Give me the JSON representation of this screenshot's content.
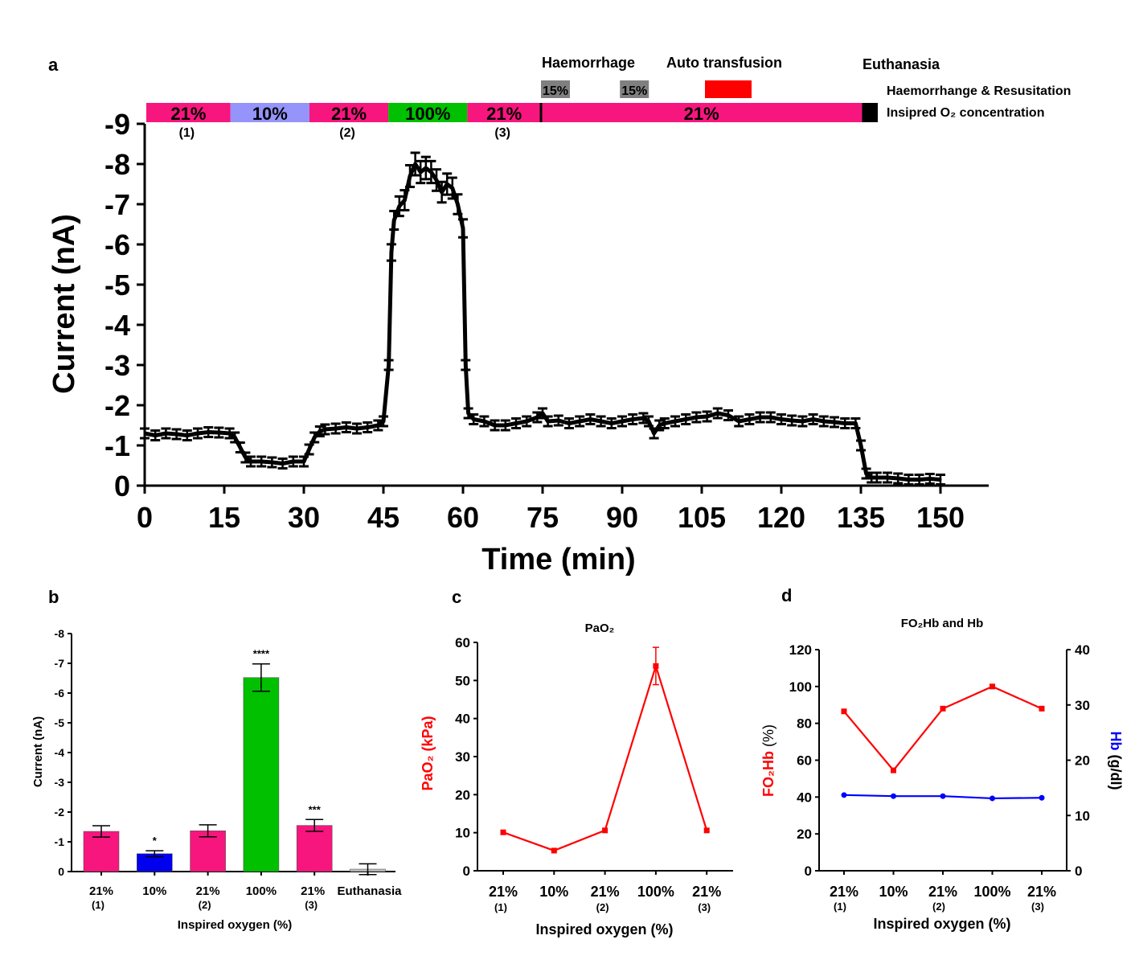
{
  "figure": {
    "panel_labels": {
      "a": "a",
      "b": "b",
      "c": "c",
      "d": "d"
    }
  },
  "chart_data": [
    {
      "id": "a",
      "type": "line",
      "title": "",
      "xlabel": "Time (min)",
      "ylabel": "Current (nA)",
      "xlim": [
        0,
        160
      ],
      "ylim": [
        0,
        -9
      ],
      "xticks": [
        "0",
        "15",
        "30",
        "45",
        "60",
        "75",
        "90",
        "105",
        "120",
        "135",
        "150"
      ],
      "yticks": [
        "0",
        "-1",
        "-2",
        "-3",
        "-4",
        "-5",
        "-6",
        "-7",
        "-8",
        "-9"
      ],
      "grid": false,
      "x": [
        0,
        2,
        4,
        6,
        8,
        10,
        12,
        14,
        16,
        17,
        18,
        19,
        20,
        22,
        24,
        26,
        28,
        30,
        31,
        32,
        33,
        34,
        36,
        38,
        40,
        42,
        44,
        45,
        46,
        46.5,
        47,
        48,
        49,
        50,
        51,
        52,
        53,
        54,
        55,
        56,
        57,
        58,
        59,
        60,
        60.5,
        61,
        62,
        64,
        66,
        68,
        70,
        72,
        74,
        75,
        76,
        78,
        80,
        82,
        84,
        86,
        88,
        90,
        92,
        94,
        95,
        96,
        97,
        98,
        100,
        102,
        104,
        106,
        108,
        110,
        112,
        114,
        116,
        118,
        120,
        122,
        124,
        126,
        128,
        130,
        132,
        134,
        135,
        136,
        137,
        138,
        140,
        142,
        144,
        146,
        148,
        150
      ],
      "y": [
        -1.3,
        -1.25,
        -1.3,
        -1.28,
        -1.25,
        -1.3,
        -1.33,
        -1.32,
        -1.3,
        -1.2,
        -0.95,
        -0.7,
        -0.6,
        -0.6,
        -0.58,
        -0.55,
        -0.6,
        -0.6,
        -0.9,
        -1.2,
        -1.35,
        -1.4,
        -1.42,
        -1.45,
        -1.42,
        -1.45,
        -1.5,
        -1.6,
        -3.0,
        -5.8,
        -6.6,
        -6.95,
        -7.1,
        -7.7,
        -8.0,
        -7.8,
        -7.9,
        -7.8,
        -7.6,
        -7.3,
        -7.5,
        -7.4,
        -7.0,
        -6.4,
        -3.0,
        -1.8,
        -1.65,
        -1.6,
        -1.5,
        -1.5,
        -1.55,
        -1.6,
        -1.7,
        -1.8,
        -1.6,
        -1.62,
        -1.55,
        -1.6,
        -1.65,
        -1.6,
        -1.55,
        -1.6,
        -1.65,
        -1.68,
        -1.6,
        -1.3,
        -1.5,
        -1.55,
        -1.6,
        -1.65,
        -1.7,
        -1.72,
        -1.8,
        -1.75,
        -1.6,
        -1.65,
        -1.7,
        -1.7,
        -1.65,
        -1.62,
        -1.6,
        -1.65,
        -1.6,
        -1.58,
        -1.55,
        -1.55,
        -1.0,
        -0.3,
        -0.2,
        -0.2,
        -0.2,
        -0.18,
        -0.15,
        -0.15,
        -0.17,
        -0.15
      ],
      "error": 0.12,
      "annotations": {
        "events": [
          {
            "label": "Haemorrhage",
            "x": 75
          },
          {
            "label": "Auto transfusion",
            "x": 105
          },
          {
            "label": "Euthanasia",
            "x": 136
          }
        ],
        "rows": {
          "haemorrhage_row_label": "Haemorrhange & Resusitation",
          "o2_row_label": "Insipred O₂ concentration"
        },
        "haemorrhage_blocks": [
          {
            "label": "15%",
            "start": 75,
            "end": 81,
            "color": "#808080"
          },
          {
            "label": "15%",
            "start": 90,
            "end": 96,
            "color": "#808080"
          },
          {
            "label": "",
            "start": 106,
            "end": 115,
            "color": "#ff0000"
          }
        ],
        "o2_blocks": [
          {
            "label": "21%",
            "sub": "(1)",
            "start": 0,
            "end": 16,
            "color": "#f7157e"
          },
          {
            "label": "10%",
            "sub": "",
            "start": 16,
            "end": 31,
            "color": "#9494fa"
          },
          {
            "label": "21%",
            "sub": "(2)",
            "start": 31,
            "end": 46,
            "color": "#f7157e"
          },
          {
            "label": "100%",
            "sub": "",
            "start": 46,
            "end": 61,
            "color": "#00c000"
          },
          {
            "label": "21%",
            "sub": "(3)",
            "start": 61,
            "end": 75,
            "color": "#f7157e"
          },
          {
            "label": "21%",
            "sub": "",
            "start": 75,
            "end": 136,
            "color": "#f7157e"
          },
          {
            "label": "",
            "sub": "",
            "start": 136,
            "end": 139,
            "color": "#000000"
          }
        ]
      }
    },
    {
      "id": "b",
      "type": "bar",
      "title": "",
      "xlabel": "Inspired oxygen (%)",
      "ylabel": "Current (nA)",
      "ylim": [
        0,
        -8
      ],
      "yticks": [
        "0",
        "-1",
        "-2",
        "-3",
        "-4",
        "-5",
        "-6",
        "-7",
        "-8"
      ],
      "categories": [
        "21%",
        "10%",
        "21%",
        "100%",
        "21%",
        "Euthanasia"
      ],
      "subcategories": [
        "(1)",
        "",
        "(2)",
        "",
        "(3)",
        ""
      ],
      "values": [
        -1.35,
        -0.6,
        -1.37,
        -6.52,
        -1.55,
        -0.08
      ],
      "errors": [
        0.19,
        0.1,
        0.2,
        0.46,
        0.2,
        0.18
      ],
      "significance": [
        "",
        "*",
        "",
        "****",
        "***",
        ""
      ],
      "colors": [
        "#f7157e",
        "#0000ee",
        "#f7157e",
        "#00c000",
        "#f7157e",
        "#c0c0c0"
      ]
    },
    {
      "id": "c",
      "type": "line",
      "title": "PaO₂",
      "xlabel": "Inspired oxygen (%)",
      "ylabel": "PaO₂ (kPa)",
      "ylim": [
        0,
        60
      ],
      "yticks": [
        "0",
        "10",
        "20",
        "30",
        "40",
        "50",
        "60"
      ],
      "categories": [
        "21%",
        "10%",
        "21%",
        "100%",
        "21%"
      ],
      "subcategories": [
        "(1)",
        "",
        "(2)",
        "",
        "(3)"
      ],
      "series": [
        {
          "name": "PaO2",
          "values": [
            10.1,
            5.3,
            10.6,
            53.8,
            10.6
          ],
          "errors": [
            0,
            0,
            0,
            4.9,
            0
          ],
          "color": "#ff0000"
        }
      ]
    },
    {
      "id": "d",
      "type": "line",
      "title": "FO₂Hb and Hb",
      "xlabel": "Inspired oxygen (%)",
      "ylabel": "FO₂Hb (%)",
      "ylabel_right": "Hb (g/dl)",
      "ylim": [
        0,
        120
      ],
      "ylim_right": [
        0,
        40
      ],
      "yticks": [
        "0",
        "20",
        "40",
        "60",
        "80",
        "100",
        "120"
      ],
      "yticks_right": [
        "0",
        "10",
        "20",
        "30",
        "40"
      ],
      "categories": [
        "21%",
        "10%",
        "21%",
        "100%",
        "21%"
      ],
      "subcategories": [
        "(1)",
        "",
        "(2)",
        "",
        "(3)"
      ],
      "series": [
        {
          "name": "FO2Hb",
          "axis": "left",
          "values": [
            86.5,
            54.5,
            88,
            100,
            88
          ],
          "color": "#ff0000",
          "marker": "square"
        },
        {
          "name": "Hb",
          "axis": "right",
          "values": [
            13.7,
            13.5,
            13.5,
            13.1,
            13.2
          ],
          "color": "#0000ff",
          "marker": "circle"
        }
      ]
    }
  ]
}
